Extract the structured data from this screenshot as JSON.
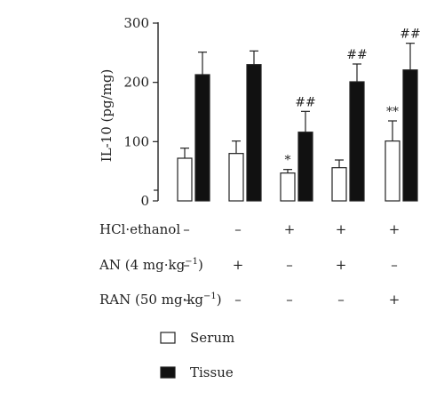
{
  "chart_data": {
    "type": "bar",
    "ylabel": "IL-10 (pg/mg)",
    "ylim": [
      0,
      300
    ],
    "yticks": [
      0,
      100,
      200,
      300
    ],
    "group_count": 5,
    "series": [
      {
        "name": "Serum",
        "color": "#ffffff",
        "values": [
          72,
          80,
          47,
          56,
          101
        ],
        "errors": [
          17,
          21,
          6,
          13,
          34
        ],
        "significance": [
          "",
          "",
          "*",
          "",
          "**"
        ]
      },
      {
        "name": "Tissue",
        "color": "#111111",
        "values": [
          213,
          230,
          116,
          201,
          221
        ],
        "errors": [
          38,
          23,
          35,
          30,
          45
        ],
        "significance": [
          "",
          "",
          "##",
          "##",
          "##"
        ]
      }
    ],
    "treatments": [
      {
        "label": "HCl·ethanol",
        "values": [
          "–",
          "–",
          "+",
          "+",
          "+"
        ]
      },
      {
        "label": "AN (4 mg·kg",
        "sup": "−1",
        "close": ")",
        "values": [
          "–",
          "+",
          "–",
          "+",
          "–"
        ]
      },
      {
        "label": "RAN (50 mg·kg",
        "sup": "−1",
        "close": ")",
        "values": [
          "–",
          "–",
          "–",
          "–",
          "+"
        ]
      }
    ],
    "legend": [
      {
        "name": "Serum",
        "color": "#ffffff"
      },
      {
        "name": "Tissue",
        "color": "#111111"
      }
    ]
  }
}
